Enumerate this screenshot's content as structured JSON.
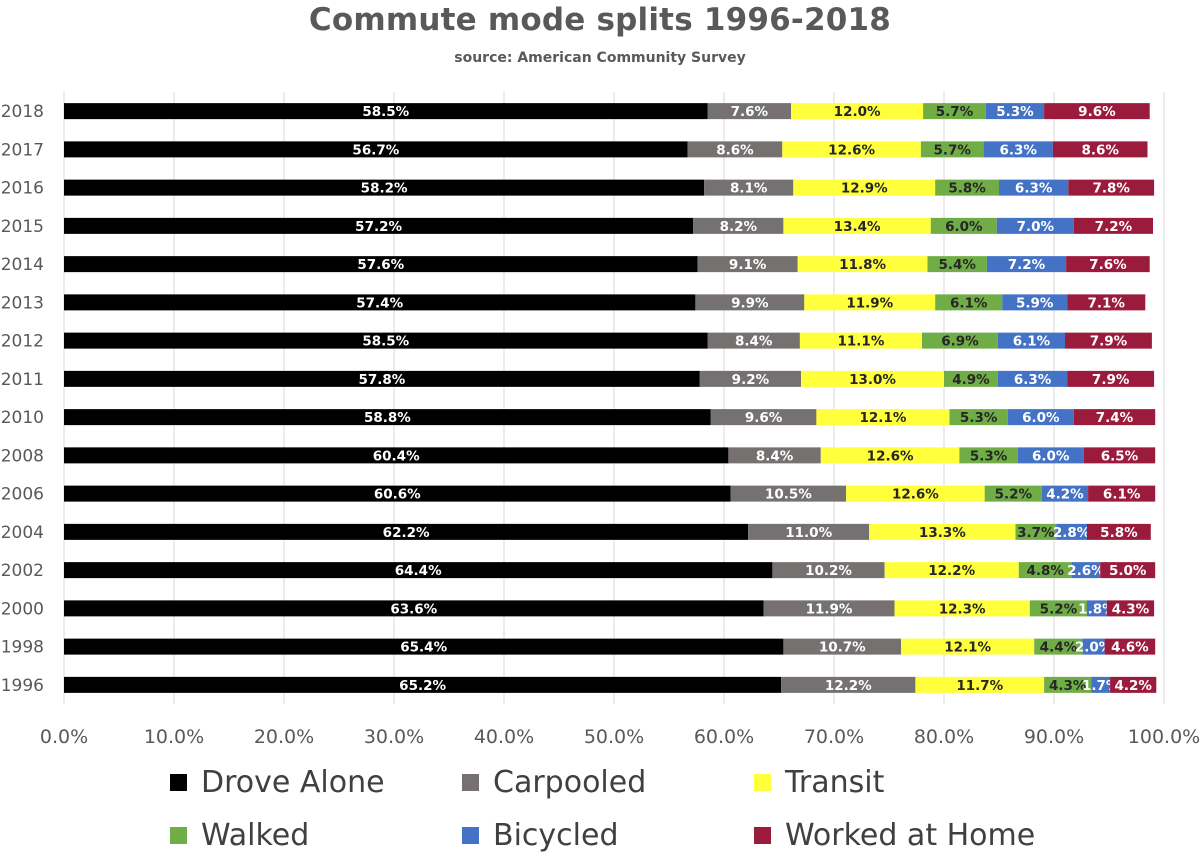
{
  "chart_data": {
    "type": "bar",
    "orientation": "horizontal",
    "stacked": true,
    "title": "Commute mode splits 1996-2018",
    "subtitle": "source: American Community Survey",
    "categories": [
      "2018",
      "2017",
      "2016",
      "2015",
      "2014",
      "2013",
      "2012",
      "2011",
      "2010",
      "2008",
      "2006",
      "2004",
      "2002",
      "2000",
      "1998",
      "1996"
    ],
    "series": [
      {
        "name": "Drove Alone",
        "color": "#000000",
        "label_color": "#ffffff",
        "values": [
          58.5,
          56.7,
          58.2,
          57.2,
          57.6,
          57.4,
          58.5,
          57.8,
          58.8,
          60.4,
          60.6,
          62.2,
          64.4,
          63.6,
          65.4,
          65.2
        ]
      },
      {
        "name": "Carpooled",
        "color": "#767171",
        "label_color": "#ffffff",
        "values": [
          7.6,
          8.6,
          8.1,
          8.2,
          9.1,
          9.9,
          8.4,
          9.2,
          9.6,
          8.4,
          10.5,
          11.0,
          10.2,
          11.9,
          10.7,
          12.2
        ]
      },
      {
        "name": "Transit",
        "color": "#ffff3c",
        "label_color": "#262626",
        "values": [
          12.0,
          12.6,
          12.9,
          13.4,
          11.8,
          11.9,
          11.1,
          13.0,
          12.1,
          12.6,
          12.6,
          13.3,
          12.2,
          12.3,
          12.1,
          11.7
        ]
      },
      {
        "name": "Walked",
        "color": "#70ad47",
        "label_color": "#262626",
        "values": [
          5.7,
          5.7,
          5.8,
          6.0,
          5.4,
          6.1,
          6.9,
          4.9,
          5.3,
          5.3,
          5.2,
          3.7,
          4.8,
          5.2,
          4.4,
          4.3
        ]
      },
      {
        "name": "Bicycled",
        "color": "#4472c4",
        "label_color": "#ffffff",
        "values": [
          5.3,
          6.3,
          6.3,
          7.0,
          7.2,
          5.9,
          6.1,
          6.3,
          6.0,
          6.0,
          4.2,
          2.8,
          2.6,
          1.8,
          2.0,
          1.7
        ]
      },
      {
        "name": "Worked at Home",
        "color": "#9b1b3c",
        "label_color": "#ffffff",
        "values": [
          9.6,
          8.6,
          7.8,
          7.2,
          7.6,
          7.1,
          7.9,
          7.9,
          7.4,
          6.5,
          6.1,
          5.8,
          5.0,
          4.3,
          4.6,
          4.2
        ]
      }
    ],
    "xlim": [
      0,
      100
    ],
    "xticks": [
      "0.0%",
      "10.0%",
      "20.0%",
      "30.0%",
      "40.0%",
      "50.0%",
      "60.0%",
      "70.0%",
      "80.0%",
      "90.0%",
      "100.0%"
    ],
    "value_suffix": "%",
    "grid": true,
    "legend_position": "bottom"
  }
}
